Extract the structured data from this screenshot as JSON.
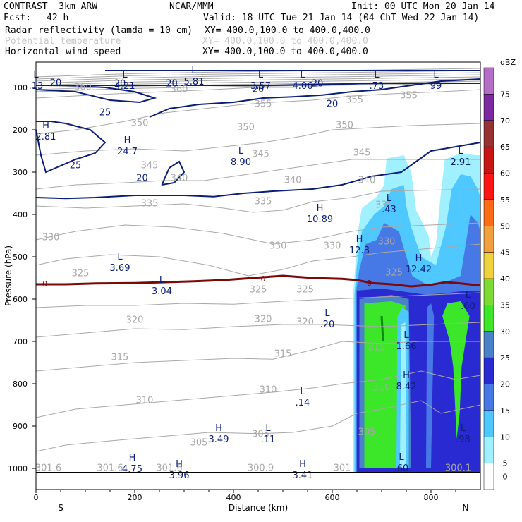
{
  "header": {
    "model": "CONTRAST  3km ARW",
    "org": "NCAR/MMM",
    "init": "Init: 00 UTC Mon 20 Jan 14",
    "fcst_label": "Fcst:",
    "fcst_value": "42 h",
    "valid": "Valid: 18 UTC Tue 21 Jan 14 (04 ChT Wed 22 Jan 14)",
    "fields": [
      {
        "name": "Radar reflectivity (lamda = 10 cm)",
        "xy": "XY= 400.0,100.0 to 400.0,400.0",
        "muted": false
      },
      {
        "name": "Potential temperature",
        "xy": "XY= 400.0,100.0 to 400.0,400.0",
        "muted": true
      },
      {
        "name": "Horizontal wind speed",
        "xy": "XY= 400.0,100.0 to 400.0,400.0",
        "muted": false
      }
    ]
  },
  "colors": {
    "wind": "#0a1e78",
    "theta": "#a8a8a8",
    "freezing": "#7a0a0a",
    "ground": "#000000"
  },
  "chart_data": {
    "type": "heatmap",
    "title": "Radar reflectivity (lamda = 10 cm)",
    "xlabel": "Distance (km)",
    "ylabel": "Pressure (hPa)",
    "xlim": [
      0,
      900
    ],
    "ylim": [
      1050,
      40
    ],
    "x_ticks": [
      0,
      200,
      400,
      600,
      800
    ],
    "y_ticks": [
      100,
      200,
      300,
      400,
      500,
      600,
      700,
      800,
      900,
      1000
    ],
    "direction_left": "S",
    "direction_right": "N",
    "colorbar": {
      "unit": "dBZ",
      "levels": [
        0,
        5,
        10,
        15,
        20,
        25,
        30,
        35,
        40,
        45,
        50,
        55,
        60,
        65,
        70,
        75
      ],
      "colors": [
        "#ffffff",
        "#a0f0ff",
        "#4ec8ff",
        "#4678e6",
        "#2a2ad2",
        "#4a82c8",
        "#3ce628",
        "#7ddc34",
        "#f0d33c",
        "#f0a03c",
        "#ff6a14",
        "#ff1414",
        "#c81414",
        "#963232",
        "#7d28a0",
        "#b46ec8"
      ]
    },
    "theta_contours": [
      305,
      310,
      315,
      320,
      325,
      330,
      335,
      340,
      345,
      350,
      355,
      360
    ],
    "theta_surface_labels": [
      "301.6",
      "301.6",
      "301.6",
      "300.9",
      "301",
      "300.1"
    ],
    "wind_contours": [
      20,
      25
    ],
    "freezing_level_label": "0",
    "extrema": [
      {
        "type": "L",
        "value": ".13",
        "x": 0,
        "p": 90
      },
      {
        "type": "L",
        "value": "4.21",
        "x": 180,
        "p": 90
      },
      {
        "type": "L",
        "value": "5.81",
        "x": 320,
        "p": 80
      },
      {
        "type": "L",
        "value": "3.57",
        "x": 455,
        "p": 90
      },
      {
        "type": "L",
        "value": "4.06",
        "x": 540,
        "p": 90
      },
      {
        "type": "L",
        "value": ".73",
        "x": 690,
        "p": 90
      },
      {
        "type": "L",
        "value": "99",
        "x": 810,
        "p": 90
      },
      {
        "type": "H",
        "value": "2.81",
        "x": 20,
        "p": 210
      },
      {
        "type": "H",
        "value": "24.7",
        "x": 185,
        "p": 245
      },
      {
        "type": "L",
        "value": "8.90",
        "x": 415,
        "p": 270
      },
      {
        "type": "L",
        "value": "2.91",
        "x": 860,
        "p": 270
      },
      {
        "type": "H",
        "value": "10.89",
        "x": 575,
        "p": 405
      },
      {
        "type": "L",
        "value": ".43",
        "x": 715,
        "p": 382
      },
      {
        "type": "H",
        "value": "12.3",
        "x": 655,
        "p": 478
      },
      {
        "type": "H",
        "value": "12.42",
        "x": 775,
        "p": 523
      },
      {
        "type": "L",
        "value": "3.69",
        "x": 170,
        "p": 520
      },
      {
        "type": "L",
        "value": "3.04",
        "x": 255,
        "p": 575
      },
      {
        "type": "L",
        "value": ".60",
        "x": 875,
        "p": 610
      },
      {
        "type": "L",
        "value": ".20",
        "x": 590,
        "p": 653
      },
      {
        "type": "L",
        "value": "1.66",
        "x": 750,
        "p": 705
      },
      {
        "type": "H",
        "value": "8.42",
        "x": 750,
        "p": 800
      },
      {
        "type": "L",
        "value": ".14",
        "x": 540,
        "p": 838
      },
      {
        "type": "H",
        "value": "3.49",
        "x": 370,
        "p": 925
      },
      {
        "type": "L",
        "value": ".11",
        "x": 470,
        "p": 925
      },
      {
        "type": "L",
        "value": ".98",
        "x": 865,
        "p": 925
      },
      {
        "type": "H",
        "value": "4.75",
        "x": 195,
        "p": 995
      },
      {
        "type": "H",
        "value": "3.96",
        "x": 290,
        "p": 1010
      },
      {
        "type": "H",
        "value": "3.41",
        "x": 540,
        "p": 1010
      },
      {
        "type": "L",
        "value": ".60",
        "x": 740,
        "p": 993
      }
    ]
  }
}
